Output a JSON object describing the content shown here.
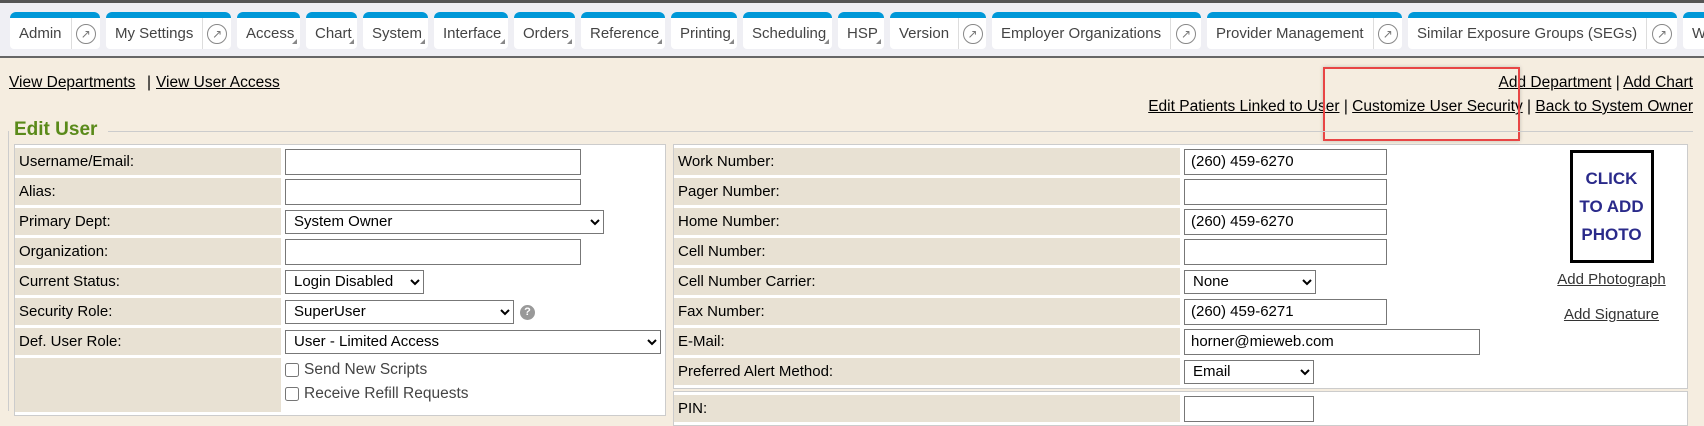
{
  "nav": {
    "tabs": [
      {
        "label": "Admin",
        "dropdown": false,
        "external": true,
        "w": 90
      },
      {
        "label": "My Settings",
        "dropdown": false,
        "external": true,
        "w": 125
      },
      {
        "label": "Access",
        "dropdown": true,
        "external": false,
        "w": 63
      },
      {
        "label": "Chart",
        "dropdown": true,
        "external": false,
        "w": 51
      },
      {
        "label": "System",
        "dropdown": true,
        "external": false,
        "w": 65
      },
      {
        "label": "Interface",
        "dropdown": true,
        "external": false,
        "w": 74
      },
      {
        "label": "Orders",
        "dropdown": true,
        "external": false,
        "w": 61
      },
      {
        "label": "Reference",
        "dropdown": true,
        "external": false,
        "w": 84
      },
      {
        "label": "Printing",
        "dropdown": true,
        "external": false,
        "w": 66
      },
      {
        "label": "Scheduling",
        "dropdown": true,
        "external": false,
        "w": 89
      },
      {
        "label": "HSP",
        "dropdown": true,
        "external": false,
        "w": 46
      },
      {
        "label": "Version",
        "dropdown": false,
        "external": true,
        "w": 96
      },
      {
        "label": "Employer Organizations",
        "dropdown": false,
        "external": true,
        "w": 209
      },
      {
        "label": "Provider Management",
        "dropdown": false,
        "external": true,
        "w": 195
      },
      {
        "label": "Similar Exposure Groups (SEGs)",
        "dropdown": false,
        "external": true,
        "w": 269
      },
      {
        "label": "Wo",
        "dropdown": false,
        "external": false,
        "w": 60
      }
    ]
  },
  "links": {
    "view_departments": "View Departments",
    "view_user_access": "View User Access",
    "add_department": "Add Department",
    "add_chart": "Add Chart",
    "edit_patients": "Edit Patients Linked to User",
    "customize_security": "Customize User Security",
    "back_to_owner": "Back to System Owner",
    "sep": "|"
  },
  "form": {
    "title": "Edit User",
    "left": {
      "username_label": "Username/Email:",
      "username_value": "",
      "alias_label": "Alias:",
      "alias_value": "",
      "primary_dept_label": "Primary Dept:",
      "primary_dept_value": "System Owner",
      "organization_label": "Organization:",
      "organization_value": "",
      "status_label": "Current Status:",
      "status_value": "Login Disabled",
      "security_role_label": "Security Role:",
      "security_role_value": "SuperUser",
      "def_role_label": "Def. User Role:",
      "def_role_value": "User - Limited Access",
      "send_scripts": "Send New Scripts",
      "receive_refill": "Receive Refill Requests"
    },
    "right": {
      "work_label": "Work Number:",
      "work_value": "(260) 459-6270",
      "pager_label": "Pager Number:",
      "pager_value": "",
      "home_label": "Home Number:",
      "home_value": "(260) 459-6270",
      "cell_label": "Cell Number:",
      "cell_value": "",
      "carrier_label": "Cell Number Carrier:",
      "carrier_value": "None",
      "fax_label": "Fax Number:",
      "fax_value": "(260) 459-6271",
      "email_label": "E-Mail:",
      "email_value": "horner@mieweb.com",
      "alert_label": "Preferred Alert Method:",
      "alert_value": "Email",
      "pin_label": "PIN:",
      "photo_l1": "CLICK",
      "photo_l2": "TO ADD",
      "photo_l3": "PHOTO",
      "add_photo": "Add Photograph",
      "add_signature": "Add Signature"
    }
  }
}
